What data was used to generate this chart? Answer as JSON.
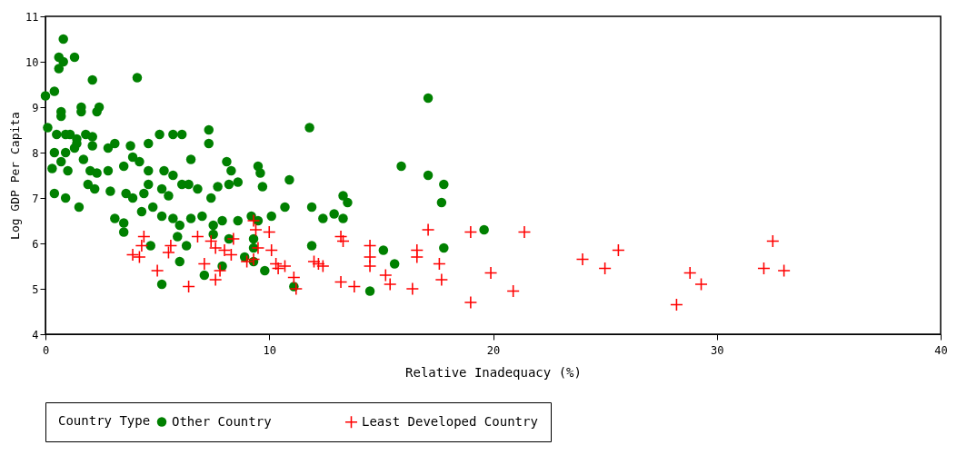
{
  "chart_data": {
    "type": "scatter",
    "xlabel": "Relative Inadequacy (%)",
    "ylabel": "Log GDP Per Capita",
    "legend_title": "Country Type",
    "xlim": [
      0,
      40
    ],
    "xticks": [
      0,
      10,
      20,
      30,
      40
    ],
    "ylim": [
      4,
      11
    ],
    "yticks": [
      4,
      5,
      6,
      7,
      8,
      9,
      10,
      11
    ],
    "grid": false,
    "legend": "bottom",
    "series": [
      {
        "name": "Other Country",
        "color": "#008000",
        "marker": "circle",
        "x": [
          0.8,
          0.6,
          0.8,
          1.3,
          0.6,
          2.1,
          4.1,
          0.0,
          0.4,
          1.6,
          1.6,
          2.4,
          2.3,
          0.7,
          0.7,
          0.1,
          17.1,
          11.8,
          0.5,
          0.9,
          1.1,
          1.4,
          1.8,
          2.1,
          0.4,
          0.9,
          1.3,
          1.4,
          2.1,
          2.8,
          3.1,
          3.8,
          4.6,
          5.1,
          5.7,
          6.1,
          7.3,
          7.3,
          0.3,
          0.7,
          1.0,
          1.7,
          2.0,
          2.3,
          2.8,
          3.5,
          3.9,
          4.2,
          4.6,
          5.3,
          5.7,
          6.5,
          8.1,
          8.3,
          9.5,
          9.6,
          15.9,
          17.1,
          17.8,
          0.4,
          0.9,
          1.5,
          1.9,
          2.2,
          2.9,
          3.6,
          3.9,
          4.4,
          4.6,
          5.2,
          5.5,
          6.1,
          6.4,
          6.8,
          7.4,
          7.7,
          8.2,
          8.6,
          9.7,
          10.9,
          11.9,
          13.3,
          13.5,
          17.7,
          3.1,
          3.5,
          3.5,
          4.3,
          4.8,
          5.2,
          5.7,
          6.0,
          6.5,
          7.0,
          7.5,
          7.9,
          8.6,
          9.2,
          9.5,
          10.1,
          10.7,
          12.4,
          12.9,
          13.3,
          4.7,
          5.9,
          6.3,
          7.5,
          8.2,
          9.3,
          9.3,
          11.9,
          15.1,
          17.8,
          19.6,
          5.2,
          6.0,
          7.1,
          7.9,
          8.9,
          9.3,
          9.8,
          11.1,
          14.5,
          15.6
        ],
        "values": [
          10.5,
          10.1,
          10.0,
          10.1,
          9.85,
          9.6,
          9.65,
          9.25,
          9.35,
          9.0,
          8.9,
          9.0,
          8.9,
          8.9,
          8.8,
          8.55,
          9.2,
          8.55,
          8.4,
          8.4,
          8.4,
          8.3,
          8.4,
          8.35,
          8.0,
          8.0,
          8.1,
          8.2,
          8.15,
          8.1,
          8.2,
          8.15,
          8.2,
          8.4,
          8.4,
          8.4,
          8.5,
          8.2,
          7.65,
          7.8,
          7.6,
          7.85,
          7.6,
          7.55,
          7.6,
          7.7,
          7.9,
          7.8,
          7.6,
          7.6,
          7.5,
          7.85,
          7.8,
          7.6,
          7.7,
          7.55,
          7.7,
          7.5,
          7.3,
          7.1,
          7.0,
          6.8,
          7.3,
          7.2,
          7.15,
          7.1,
          7.0,
          7.1,
          7.3,
          7.2,
          7.05,
          7.3,
          7.3,
          7.2,
          7.0,
          7.25,
          7.3,
          7.35,
          7.25,
          7.4,
          6.8,
          7.05,
          6.9,
          6.9,
          6.55,
          6.45,
          6.25,
          6.7,
          6.8,
          6.6,
          6.55,
          6.4,
          6.55,
          6.6,
          6.4,
          6.5,
          6.5,
          6.6,
          6.5,
          6.6,
          6.8,
          6.55,
          6.65,
          6.55,
          5.95,
          6.15,
          5.95,
          6.2,
          6.1,
          6.1,
          5.9,
          5.95,
          5.85,
          5.9,
          6.3,
          5.1,
          5.6,
          5.3,
          5.5,
          5.7,
          5.6,
          5.4,
          5.05,
          4.95,
          5.55
        ]
      },
      {
        "name": "Least Developed Country",
        "color": "#ff0000",
        "marker": "cross",
        "x": [
          3.9,
          4.2,
          4.3,
          4.4,
          5.0,
          5.5,
          5.6,
          6.4,
          6.8,
          7.1,
          7.4,
          7.6,
          7.6,
          7.8,
          8.0,
          8.3,
          8.4,
          9.0,
          9.3,
          9.4,
          9.5,
          9.3,
          10.0,
          10.1,
          10.3,
          10.4,
          10.7,
          11.1,
          11.2,
          12.0,
          12.2,
          12.4,
          13.2,
          13.3,
          13.2,
          13.8,
          14.5,
          14.5,
          14.5,
          15.2,
          15.4,
          16.4,
          17.1,
          16.6,
          16.6,
          17.6,
          17.7,
          19.0,
          19.0,
          19.9,
          21.4,
          20.9,
          24.0,
          25.0,
          25.6,
          28.2,
          28.8,
          29.3,
          32.1,
          32.5,
          33.0
        ],
        "values": [
          5.75,
          5.7,
          5.95,
          6.15,
          5.4,
          5.8,
          5.95,
          5.05,
          6.15,
          5.55,
          6.05,
          5.2,
          5.9,
          5.4,
          5.85,
          5.75,
          6.1,
          5.6,
          6.5,
          6.3,
          5.9,
          5.65,
          6.25,
          5.85,
          5.55,
          5.45,
          5.5,
          5.25,
          5.0,
          5.6,
          5.55,
          5.5,
          6.15,
          6.05,
          5.15,
          5.05,
          5.95,
          5.7,
          5.5,
          5.3,
          5.1,
          5.0,
          6.3,
          5.85,
          5.7,
          5.55,
          5.2,
          6.25,
          4.7,
          5.35,
          6.25,
          4.95,
          5.65,
          5.45,
          5.85,
          4.65,
          5.35,
          5.1,
          5.45,
          6.05,
          5.4
        ]
      }
    ]
  }
}
